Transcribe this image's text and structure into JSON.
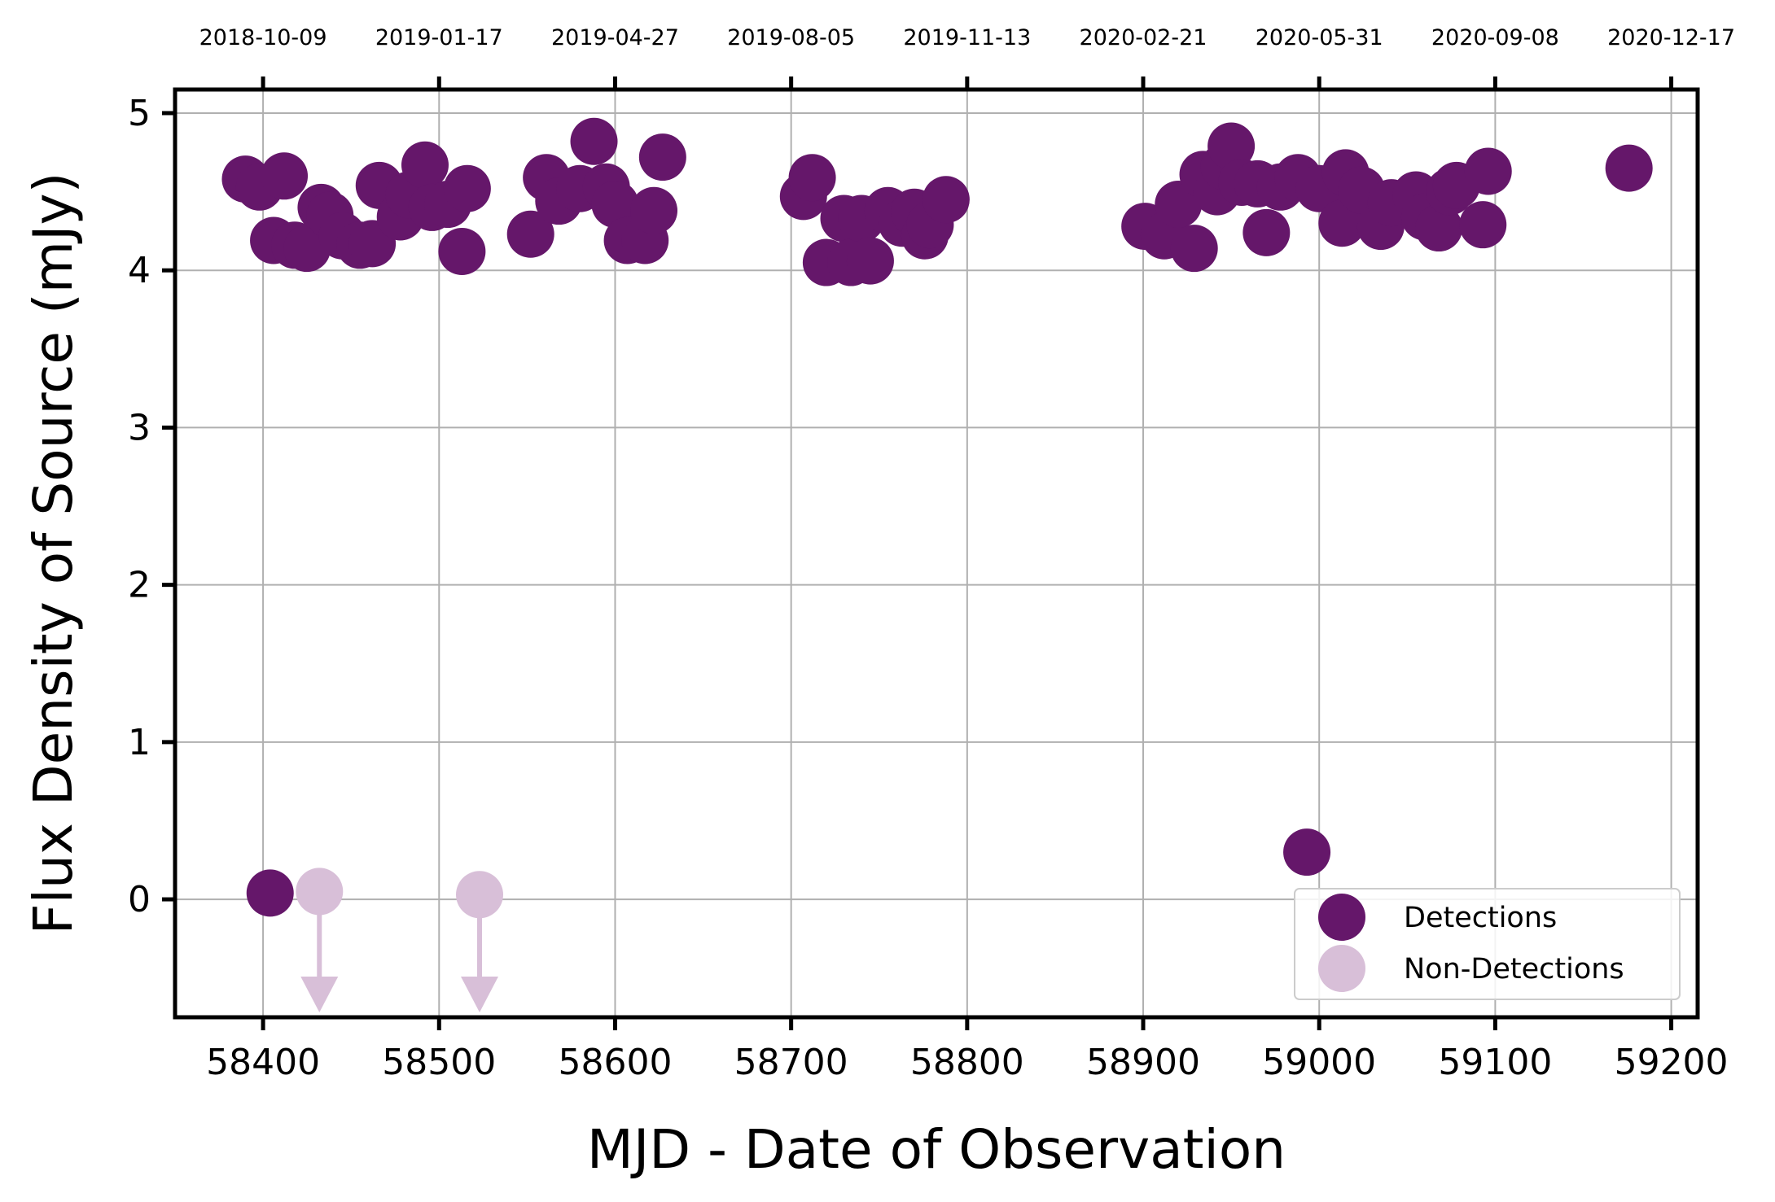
{
  "chart_data": {
    "type": "scatter",
    "xlabel": "MJD - Date of Observation",
    "ylabel": "Flux Density of Source (mJy)",
    "xlim": [
      58350,
      59215
    ],
    "ylim": [
      -0.75,
      5.15
    ],
    "grid": true,
    "x_ticks": [
      58400,
      58500,
      58600,
      58700,
      58800,
      58900,
      59000,
      59100,
      59200
    ],
    "x_tick_labels": [
      "58400",
      "58500",
      "58600",
      "58700",
      "58800",
      "58900",
      "59000",
      "59100",
      "59200"
    ],
    "y_ticks": [
      0,
      1,
      2,
      3,
      4,
      5
    ],
    "y_tick_labels": [
      "0",
      "1",
      "2",
      "3",
      "4",
      "5"
    ],
    "top_axis_ticks": [
      58400,
      58500,
      58600,
      58700,
      58800,
      58900,
      59000,
      59100,
      59200
    ],
    "top_axis_labels": [
      "2018-10-09",
      "2019-01-17",
      "2019-04-27",
      "2019-08-05",
      "2019-11-13",
      "2020-02-21",
      "2020-05-31",
      "2020-09-08",
      "2020-12-17"
    ],
    "legend": {
      "position": "lower-right",
      "entries": [
        "Detections",
        "Non-Detections"
      ]
    },
    "series": [
      {
        "name": "Detections",
        "color": "#65176a",
        "marker": "circle",
        "x": [
          58390,
          58398,
          58404,
          58406,
          58412,
          58418,
          58425,
          58433,
          58438,
          58445,
          58455,
          58462,
          58466,
          58478,
          58483,
          58492,
          58496,
          58505,
          58513,
          58516,
          58552,
          58561,
          58568,
          58580,
          58588,
          58595,
          58600,
          58607,
          58617,
          58622,
          58627,
          58707,
          58712,
          58720,
          58730,
          58734,
          58740,
          58745,
          58755,
          58763,
          58770,
          58776,
          58779,
          58788,
          58901,
          58912,
          58920,
          58929,
          58934,
          58942,
          58946,
          58950,
          58956,
          58965,
          58970,
          58978,
          58988,
          59000,
          59013,
          59015,
          59024,
          59035,
          59041,
          59055,
          59060,
          59068,
          59074,
          59078,
          59093,
          59096
        ],
        "y": [
          4.58,
          4.53,
          0.04,
          4.19,
          4.6,
          4.16,
          4.14,
          4.4,
          4.35,
          4.22,
          4.16,
          4.17,
          4.54,
          4.34,
          4.48,
          4.67,
          4.4,
          4.42,
          4.12,
          4.52,
          4.23,
          4.59,
          4.44,
          4.52,
          4.82,
          4.53,
          4.42,
          4.19,
          4.19,
          4.38,
          4.72,
          4.47,
          4.59,
          4.05,
          4.33,
          4.05,
          4.33,
          4.06,
          4.38,
          4.3,
          4.37,
          4.22,
          4.29,
          4.45,
          4.28,
          4.22,
          4.42,
          4.14,
          4.61,
          4.5,
          4.66,
          4.79,
          4.56,
          4.55,
          4.24,
          4.53,
          4.59,
          4.52,
          4.3,
          4.62,
          4.51,
          4.28,
          4.43,
          4.48,
          4.34,
          4.27,
          4.5,
          4.54,
          4.29,
          4.63
        ]
      },
      {
        "name": "Detections",
        "color": "#65176a",
        "marker": "circle",
        "x": [
          58993,
          59176
        ],
        "y": [
          0.3,
          4.65
        ]
      },
      {
        "name": "Non-Detections",
        "color": "#d8bfd8",
        "marker": "circle-with-down-arrow",
        "x": [
          58432,
          58523
        ],
        "y": [
          0.05,
          0.03
        ]
      }
    ]
  }
}
